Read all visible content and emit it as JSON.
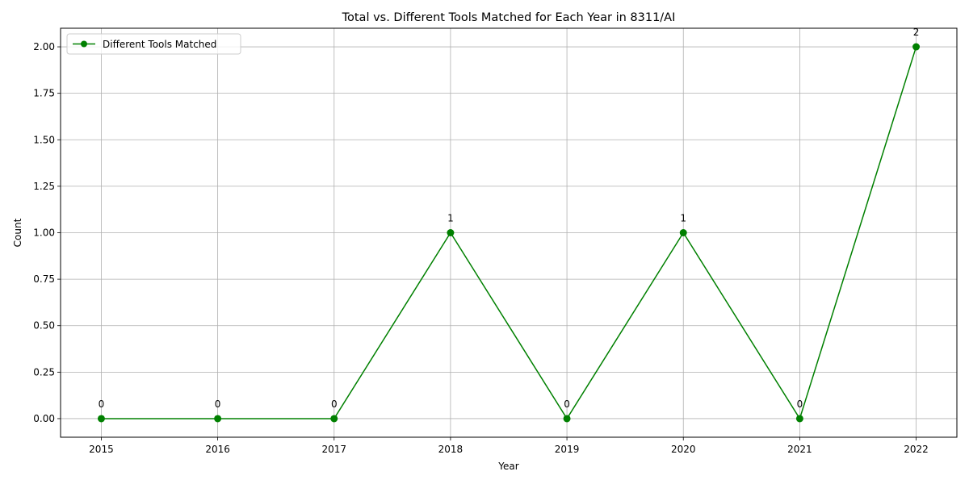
{
  "chart_data": {
    "type": "line",
    "title": "Total vs. Different Tools Matched for Each Year in 8311/AI",
    "xlabel": "Year",
    "ylabel": "Count",
    "x": [
      2015,
      2016,
      2017,
      2018,
      2019,
      2020,
      2021,
      2022
    ],
    "x_tick_labels": [
      "2015",
      "2016",
      "2017",
      "2018",
      "2019",
      "2020",
      "2021",
      "2022"
    ],
    "y_ticks": [
      0.0,
      0.25,
      0.5,
      0.75,
      1.0,
      1.25,
      1.5,
      1.75,
      2.0
    ],
    "y_tick_labels": [
      "0.00",
      "0.25",
      "0.50",
      "0.75",
      "1.00",
      "1.25",
      "1.50",
      "1.75",
      "2.00"
    ],
    "ylim": [
      -0.1,
      2.1
    ],
    "xlim": [
      2014.65,
      2022.35
    ],
    "grid": true,
    "legend_position": "upper-left",
    "series": [
      {
        "name": "Different Tools Matched",
        "color": "#008000",
        "marker": "circle",
        "values": [
          0,
          0,
          0,
          1,
          0,
          1,
          0,
          2
        ],
        "data_labels": [
          "0",
          "0",
          "0",
          "1",
          "0",
          "1",
          "0",
          "2"
        ]
      }
    ]
  }
}
